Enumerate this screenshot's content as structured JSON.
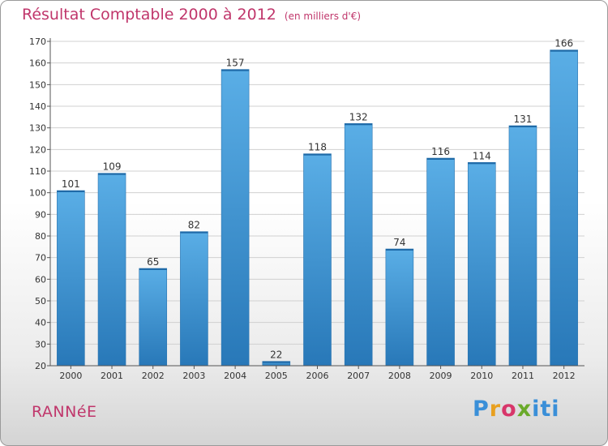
{
  "header": {
    "title": "Résultat Comptable 2000 à 2012",
    "unit": "(en milliers d'€)"
  },
  "footer": {
    "commune": "RANNéE",
    "brand_logo": "Proxiti"
  },
  "colors": {
    "title": "#c0366b",
    "bar_top": "#5aaee6",
    "bar_bottom": "#2878b8",
    "grid": "#d0d0d0",
    "axis": "#555555"
  },
  "chart_data": {
    "type": "bar",
    "title": "Résultat Comptable 2000 à 2012",
    "xlabel": "",
    "ylabel": "",
    "categories": [
      "2000",
      "2001",
      "2002",
      "2003",
      "2004",
      "2005",
      "2006",
      "2007",
      "2008",
      "2009",
      "2010",
      "2011",
      "2012"
    ],
    "values": [
      101,
      109,
      65,
      82,
      157,
      22,
      118,
      132,
      74,
      116,
      114,
      131,
      166
    ],
    "ylim": [
      20,
      170
    ],
    "yticks": [
      20,
      30,
      40,
      50,
      60,
      70,
      80,
      90,
      100,
      110,
      120,
      130,
      140,
      150,
      160,
      170
    ],
    "grid": true,
    "legend": "none"
  }
}
